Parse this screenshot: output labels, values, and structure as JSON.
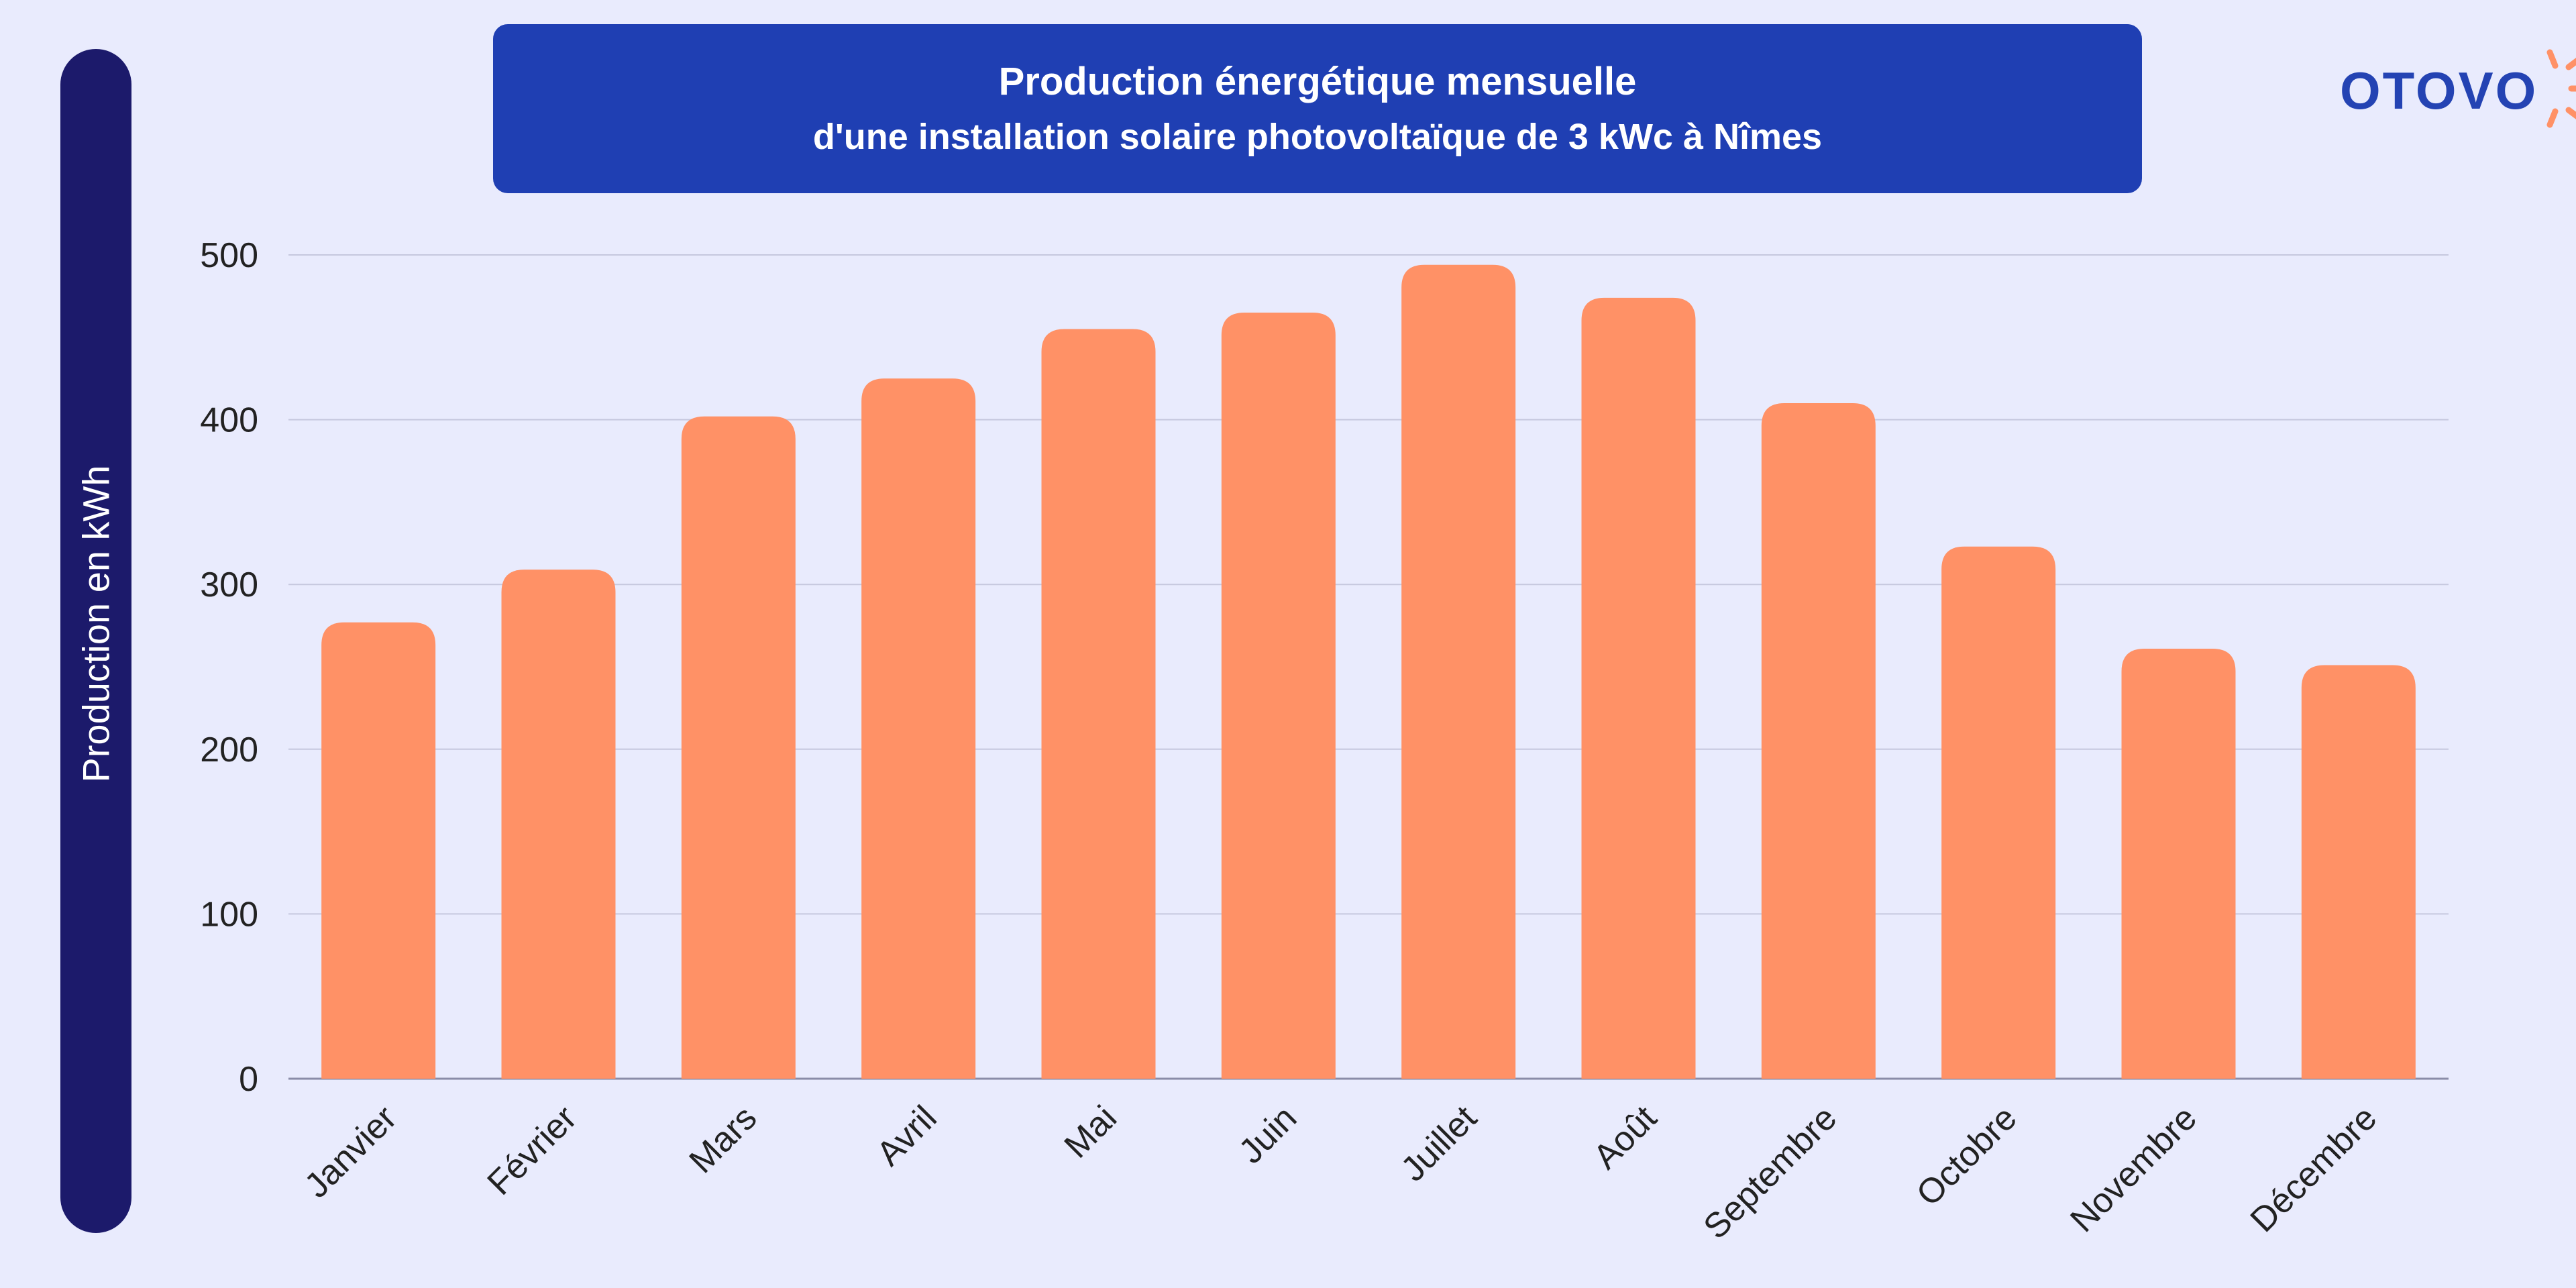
{
  "header": {
    "title_line1": "Production énergétique mensuelle",
    "title_line2": "d'une installation solaire photovoltaïque de 3 kWc à Nîmes"
  },
  "logo": {
    "text": "OTOVO",
    "icon": "sun-rays-icon"
  },
  "colors": {
    "background": "#e9ebfd",
    "bar": "#ff9166",
    "title_box": "#1f3fb3",
    "ylabel_pill": "#1c1a6b",
    "grid": "#c6c8de",
    "axis_text": "#222222",
    "logo": "#2443b3",
    "logo_icon": "#ff9166"
  },
  "chart_data": {
    "type": "bar",
    "title": "Production énergétique mensuelle d'une installation solaire photovoltaïque de 3 kWc à Nîmes",
    "ylabel": "Production en kWh",
    "xlabel": "",
    "ylim": [
      0,
      500
    ],
    "yticks": [
      0,
      100,
      200,
      300,
      400,
      500
    ],
    "grid": true,
    "categories": [
      "Janvier",
      "Février",
      "Mars",
      "Avril",
      "Mai",
      "Juin",
      "Juillet",
      "Août",
      "Septembre",
      "Octobre",
      "Novembre",
      "Décembre"
    ],
    "values": [
      277,
      309,
      402,
      425,
      455,
      465,
      494,
      474,
      410,
      323,
      261,
      251
    ]
  }
}
